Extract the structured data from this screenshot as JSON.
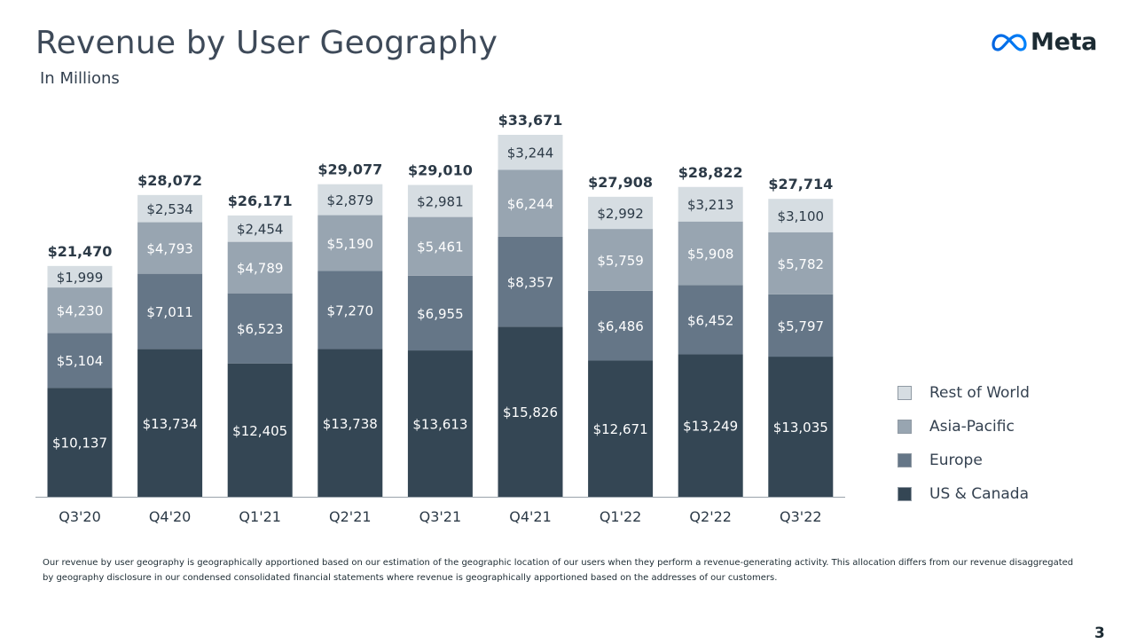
{
  "header": {
    "title": "Revenue by User Geography",
    "subtitle": "In Millions",
    "logo_text": "Meta",
    "logo_icon": "meta-infinity-logo"
  },
  "chart_data": {
    "type": "bar",
    "stacked": true,
    "categories": [
      "Q3'20",
      "Q4'20",
      "Q1'21",
      "Q2'21",
      "Q3'21",
      "Q4'21",
      "Q1'22",
      "Q2'22",
      "Q3'22"
    ],
    "series": [
      {
        "name": "US & Canada",
        "color": "#344654",
        "values": [
          10137,
          13734,
          12405,
          13738,
          13613,
          15826,
          12671,
          13249,
          13035
        ],
        "labels": [
          "$10,137",
          "$13,734",
          "$12,405",
          "$13,738",
          "$13,613",
          "$15,826",
          "$12,671",
          "$13,249",
          "$13,035"
        ]
      },
      {
        "name": "Europe",
        "color": "#657687",
        "values": [
          5104,
          7011,
          6523,
          7270,
          6955,
          8357,
          6486,
          6452,
          5797
        ],
        "labels": [
          "$5,104",
          "$7,011",
          "$6,523",
          "$7,270",
          "$6,955",
          "$8,357",
          "$6,486",
          "$6,452",
          "$5,797"
        ]
      },
      {
        "name": "Asia-Pacific",
        "color": "#98a5b1",
        "values": [
          4230,
          4793,
          4789,
          5190,
          5461,
          6244,
          5759,
          5908,
          5782
        ],
        "labels": [
          "$4,230",
          "$4,793",
          "$4,789",
          "$5,190",
          "$5,461",
          "$6,244",
          "$5,759",
          "$5,908",
          "$5,782"
        ]
      },
      {
        "name": "Rest of World",
        "color": "#d6dde2",
        "values": [
          1999,
          2534,
          2454,
          2879,
          2981,
          3244,
          2992,
          3213,
          3100
        ],
        "labels": [
          "$1,999",
          "$2,534",
          "$2,454",
          "$2,879",
          "$2,981",
          "$3,244",
          "$2,992",
          "$3,213",
          "$3,100"
        ]
      }
    ],
    "totals": [
      21470,
      28072,
      26171,
      29077,
      29010,
      33671,
      27908,
      28822,
      27714
    ],
    "total_labels": [
      "$21,470",
      "$28,072",
      "$26,171",
      "$29,077",
      "$29,010",
      "$33,671",
      "$27,908",
      "$28,822",
      "$27,714"
    ],
    "legend_position": "right",
    "grid": false
  },
  "legend": {
    "items": [
      {
        "label": "Rest of World",
        "color": "#d6dde2"
      },
      {
        "label": "Asia-Pacific",
        "color": "#98a5b1"
      },
      {
        "label": "Europe",
        "color": "#657687"
      },
      {
        "label": "US & Canada",
        "color": "#344654"
      }
    ]
  },
  "footnote": "Our revenue by user geography is geographically apportioned based on our estimation of the geographic location of our users when they perform a revenue-generating activity. This allocation differs from our revenue disaggregated by geography disclosure in our condensed consolidated financial statements where revenue is geographically apportioned based on the addresses of our customers.",
  "page_number": "3"
}
